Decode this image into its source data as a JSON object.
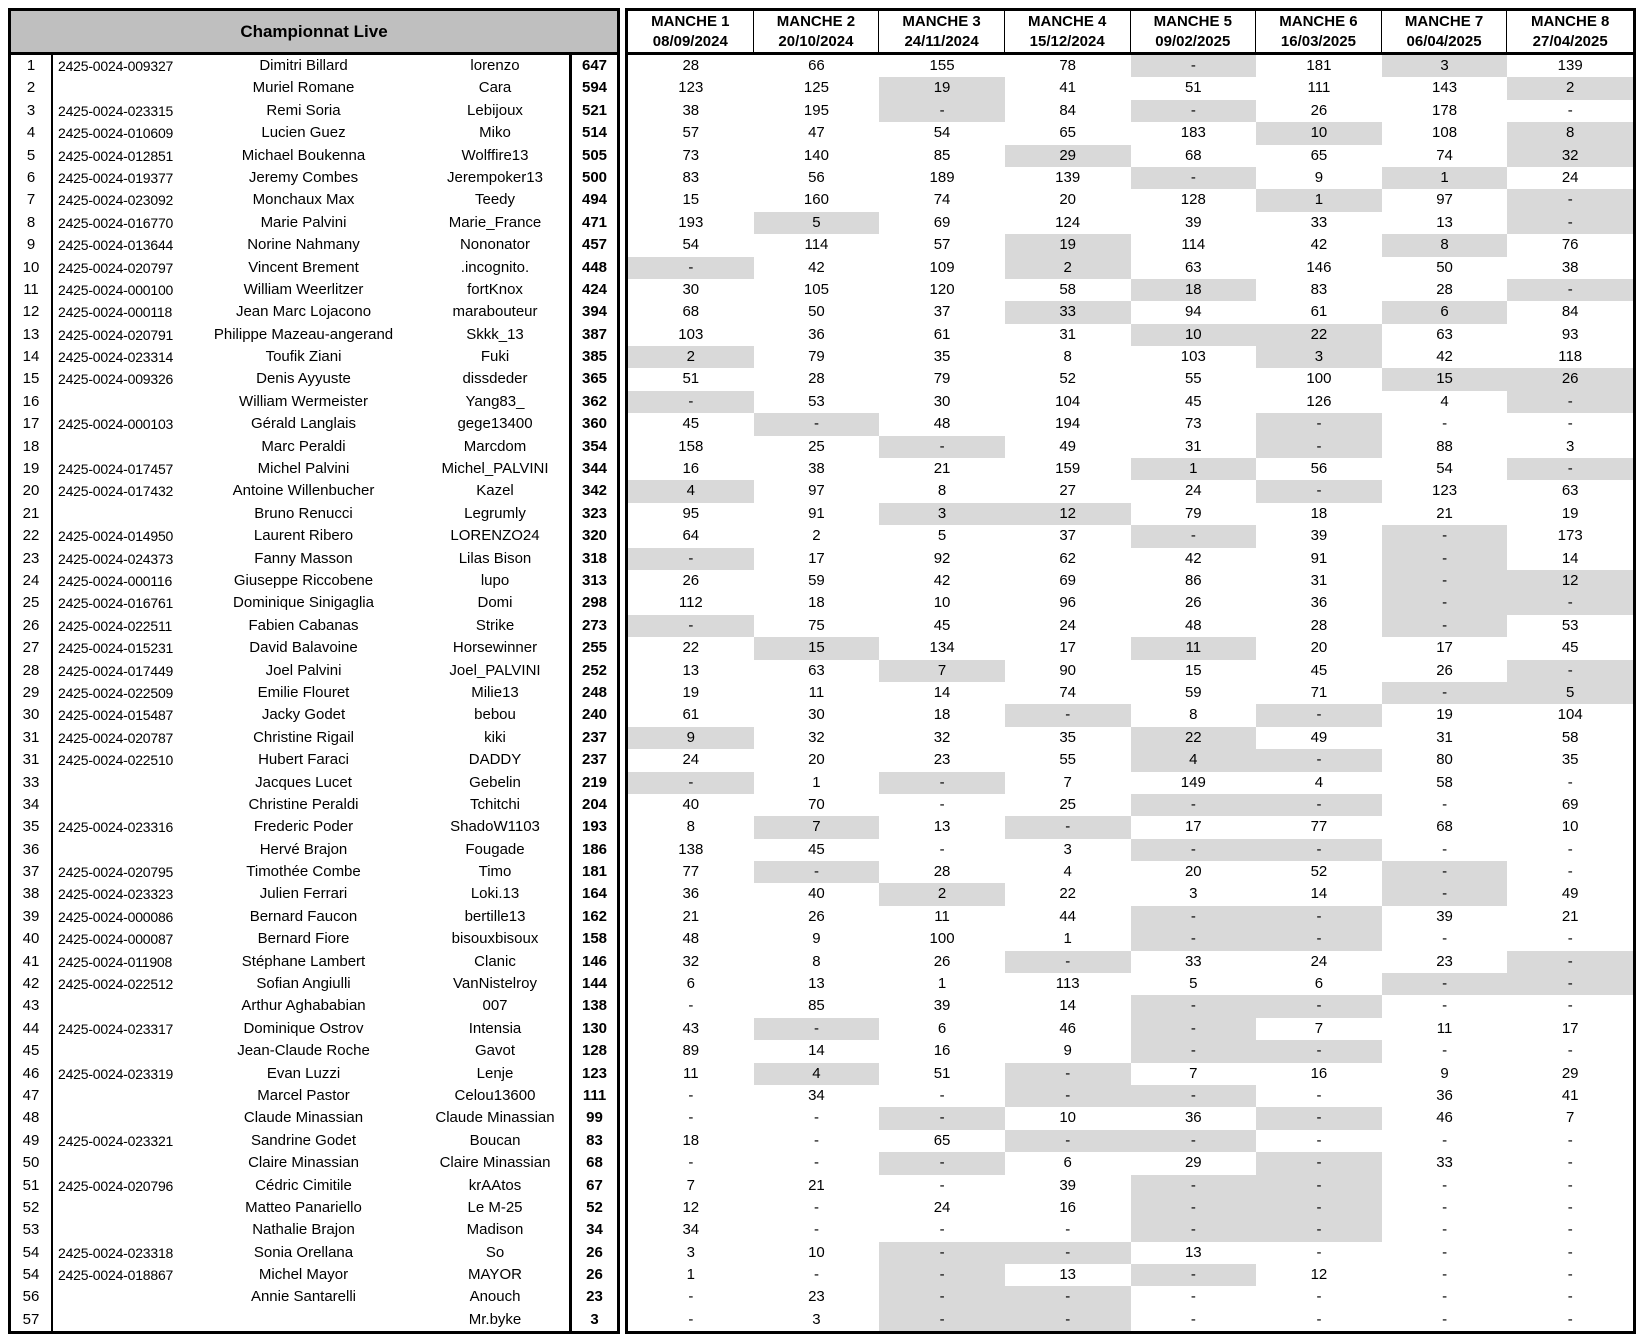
{
  "title": "Championnat Live",
  "colors": {
    "header_bg": "#bfbfbf",
    "highlight": "#d9d9d9",
    "border": "#000000"
  },
  "manches": [
    {
      "label": "MANCHE 1",
      "date": "08/09/2024"
    },
    {
      "label": "MANCHE 2",
      "date": "20/10/2024"
    },
    {
      "label": "MANCHE 3",
      "date": "24/11/2024"
    },
    {
      "label": "MANCHE 4",
      "date": "15/12/2024"
    },
    {
      "label": "MANCHE 5",
      "date": "09/02/2025"
    },
    {
      "label": "MANCHE 6",
      "date": "16/03/2025"
    },
    {
      "label": "MANCHE 7",
      "date": "06/04/2025"
    },
    {
      "label": "MANCHE 8",
      "date": "27/04/2025"
    }
  ],
  "rows": [
    {
      "rank": "1",
      "id": "2425-0024-009327",
      "name": "Dimitri Billard",
      "nick": "lorenzo",
      "total": "647",
      "scores": [
        "28",
        "66",
        "155",
        "78",
        "-",
        "181",
        "3",
        "139"
      ],
      "hl": [
        4,
        6
      ]
    },
    {
      "rank": "2",
      "id": "",
      "name": "Muriel Romane",
      "nick": "Cara",
      "total": "594",
      "scores": [
        "123",
        "125",
        "19",
        "41",
        "51",
        "111",
        "143",
        "2"
      ],
      "hl": [
        2,
        7
      ]
    },
    {
      "rank": "3",
      "id": "2425-0024-023315",
      "name": "Remi Soria",
      "nick": "Lebijoux",
      "total": "521",
      "scores": [
        "38",
        "195",
        "-",
        "84",
        "-",
        "26",
        "178",
        "-"
      ],
      "hl": [
        2,
        4
      ]
    },
    {
      "rank": "4",
      "id": "2425-0024-010609",
      "name": "Lucien Guez",
      "nick": "Miko",
      "total": "514",
      "scores": [
        "57",
        "47",
        "54",
        "65",
        "183",
        "10",
        "108",
        "8"
      ],
      "hl": [
        5,
        7
      ]
    },
    {
      "rank": "5",
      "id": "2425-0024-012851",
      "name": "Michael Boukenna",
      "nick": "Wolffire13",
      "total": "505",
      "scores": [
        "73",
        "140",
        "85",
        "29",
        "68",
        "65",
        "74",
        "32"
      ],
      "hl": [
        3,
        7
      ]
    },
    {
      "rank": "6",
      "id": "2425-0024-019377",
      "name": "Jeremy Combes",
      "nick": "Jerempoker13",
      "total": "500",
      "scores": [
        "83",
        "56",
        "189",
        "139",
        "-",
        "9",
        "1",
        "24"
      ],
      "hl": [
        4,
        6
      ]
    },
    {
      "rank": "7",
      "id": "2425-0024-023092",
      "name": "Monchaux Max",
      "nick": "Teedy",
      "total": "494",
      "scores": [
        "15",
        "160",
        "74",
        "20",
        "128",
        "1",
        "97",
        "-"
      ],
      "hl": [
        5,
        7
      ]
    },
    {
      "rank": "8",
      "id": "2425-0024-016770",
      "name": "Marie Palvini",
      "nick": "Marie_France",
      "total": "471",
      "scores": [
        "193",
        "5",
        "69",
        "124",
        "39",
        "33",
        "13",
        "-"
      ],
      "hl": [
        1,
        7
      ]
    },
    {
      "rank": "9",
      "id": "2425-0024-013644",
      "name": "Norine Nahmany",
      "nick": "Nononator",
      "total": "457",
      "scores": [
        "54",
        "114",
        "57",
        "19",
        "114",
        "42",
        "8",
        "76"
      ],
      "hl": [
        3,
        6
      ]
    },
    {
      "rank": "10",
      "id": "2425-0024-020797",
      "name": "Vincent Brement",
      "nick": ".incognito.",
      "total": "448",
      "scores": [
        "-",
        "42",
        "109",
        "2",
        "63",
        "146",
        "50",
        "38"
      ],
      "hl": [
        0,
        3
      ]
    },
    {
      "rank": "11",
      "id": "2425-0024-000100",
      "name": "William Weerlitzer",
      "nick": "fortKnox",
      "total": "424",
      "scores": [
        "30",
        "105",
        "120",
        "58",
        "18",
        "83",
        "28",
        "-"
      ],
      "hl": [
        4,
        7
      ]
    },
    {
      "rank": "12",
      "id": "2425-0024-000118",
      "name": "Jean Marc Lojacono",
      "nick": "marabouteur",
      "total": "394",
      "scores": [
        "68",
        "50",
        "37",
        "33",
        "94",
        "61",
        "6",
        "84"
      ],
      "hl": [
        3,
        6
      ]
    },
    {
      "rank": "13",
      "id": "2425-0024-020791",
      "name": "Philippe Mazeau-angerand",
      "nick": "Skkk_13",
      "total": "387",
      "scores": [
        "103",
        "36",
        "61",
        "31",
        "10",
        "22",
        "63",
        "93"
      ],
      "hl": [
        4,
        5
      ]
    },
    {
      "rank": "14",
      "id": "2425-0024-023314",
      "name": "Toufik Ziani",
      "nick": "Fuki",
      "total": "385",
      "scores": [
        "2",
        "79",
        "35",
        "8",
        "103",
        "3",
        "42",
        "118"
      ],
      "hl": [
        0,
        5
      ]
    },
    {
      "rank": "15",
      "id": "2425-0024-009326",
      "name": "Denis Ayyuste",
      "nick": "dissdeder",
      "total": "365",
      "scores": [
        "51",
        "28",
        "79",
        "52",
        "55",
        "100",
        "15",
        "26"
      ],
      "hl": [
        6,
        7
      ]
    },
    {
      "rank": "16",
      "id": "",
      "name": "William Wermeister",
      "nick": "Yang83_",
      "total": "362",
      "scores": [
        "-",
        "53",
        "30",
        "104",
        "45",
        "126",
        "4",
        "-"
      ],
      "hl": [
        0,
        7
      ]
    },
    {
      "rank": "17",
      "id": "2425-0024-000103",
      "name": "Gérald Langlais",
      "nick": "gege13400",
      "total": "360",
      "scores": [
        "45",
        "-",
        "48",
        "194",
        "73",
        "-",
        "-",
        "-"
      ],
      "hl": [
        1,
        5
      ]
    },
    {
      "rank": "18",
      "id": "",
      "name": "Marc Peraldi",
      "nick": "Marcdom",
      "total": "354",
      "scores": [
        "158",
        "25",
        "-",
        "49",
        "31",
        "-",
        "88",
        "3"
      ],
      "hl": [
        2,
        5
      ]
    },
    {
      "rank": "19",
      "id": "2425-0024-017457",
      "name": "Michel Palvini",
      "nick": "Michel_PALVINI",
      "total": "344",
      "scores": [
        "16",
        "38",
        "21",
        "159",
        "1",
        "56",
        "54",
        "-"
      ],
      "hl": [
        4,
        7
      ]
    },
    {
      "rank": "20",
      "id": "2425-0024-017432",
      "name": "Antoine Willenbucher",
      "nick": "Kazel",
      "total": "342",
      "scores": [
        "4",
        "97",
        "8",
        "27",
        "24",
        "-",
        "123",
        "63"
      ],
      "hl": [
        0,
        5
      ]
    },
    {
      "rank": "21",
      "id": "",
      "name": "Bruno Renucci",
      "nick": "Legrumly",
      "total": "323",
      "scores": [
        "95",
        "91",
        "3",
        "12",
        "79",
        "18",
        "21",
        "19"
      ],
      "hl": [
        2,
        3
      ]
    },
    {
      "rank": "22",
      "id": "2425-0024-014950",
      "name": "Laurent Ribero",
      "nick": "LORENZO24",
      "total": "320",
      "scores": [
        "64",
        "2",
        "5",
        "37",
        "-",
        "39",
        "-",
        "173"
      ],
      "hl": [
        4,
        6
      ]
    },
    {
      "rank": "23",
      "id": "2425-0024-024373",
      "name": "Fanny Masson",
      "nick": "Lilas Bison",
      "total": "318",
      "scores": [
        "-",
        "17",
        "92",
        "62",
        "42",
        "91",
        "-",
        "14"
      ],
      "hl": [
        0,
        6
      ]
    },
    {
      "rank": "24",
      "id": "2425-0024-000116",
      "name": "Giuseppe Riccobene",
      "nick": "lupo",
      "total": "313",
      "scores": [
        "26",
        "59",
        "42",
        "69",
        "86",
        "31",
        "-",
        "12"
      ],
      "hl": [
        6,
        7
      ]
    },
    {
      "rank": "25",
      "id": "2425-0024-016761",
      "name": "Dominique Sinigaglia",
      "nick": "Domi",
      "total": "298",
      "scores": [
        "112",
        "18",
        "10",
        "96",
        "26",
        "36",
        "-",
        "-"
      ],
      "hl": [
        6,
        7
      ]
    },
    {
      "rank": "26",
      "id": "2425-0024-022511",
      "name": "Fabien Cabanas",
      "nick": "Strike",
      "total": "273",
      "scores": [
        "-",
        "75",
        "45",
        "24",
        "48",
        "28",
        "-",
        "53"
      ],
      "hl": [
        0,
        6
      ]
    },
    {
      "rank": "27",
      "id": "2425-0024-015231",
      "name": "David Balavoine",
      "nick": "Horsewinner",
      "total": "255",
      "scores": [
        "22",
        "15",
        "134",
        "17",
        "11",
        "20",
        "17",
        "45"
      ],
      "hl": [
        1,
        4
      ]
    },
    {
      "rank": "28",
      "id": "2425-0024-017449",
      "name": "Joel Palvini",
      "nick": "Joel_PALVINI",
      "total": "252",
      "scores": [
        "13",
        "63",
        "7",
        "90",
        "15",
        "45",
        "26",
        "-"
      ],
      "hl": [
        2,
        7
      ]
    },
    {
      "rank": "29",
      "id": "2425-0024-022509",
      "name": "Emilie Flouret",
      "nick": "Milie13",
      "total": "248",
      "scores": [
        "19",
        "11",
        "14",
        "74",
        "59",
        "71",
        "-",
        "5"
      ],
      "hl": [
        6,
        7
      ]
    },
    {
      "rank": "30",
      "id": "2425-0024-015487",
      "name": "Jacky Godet",
      "nick": "bebou",
      "total": "240",
      "scores": [
        "61",
        "30",
        "18",
        "-",
        "8",
        "-",
        "19",
        "104"
      ],
      "hl": [
        3,
        5
      ]
    },
    {
      "rank": "31",
      "id": "2425-0024-020787",
      "name": "Christine Rigail",
      "nick": "kiki",
      "total": "237",
      "scores": [
        "9",
        "32",
        "32",
        "35",
        "22",
        "49",
        "31",
        "58"
      ],
      "hl": [
        0,
        4
      ]
    },
    {
      "rank": "31",
      "id": "2425-0024-022510",
      "name": "Hubert Faraci",
      "nick": "DADDY",
      "total": "237",
      "scores": [
        "24",
        "20",
        "23",
        "55",
        "4",
        "-",
        "80",
        "35"
      ],
      "hl": [
        4,
        5
      ]
    },
    {
      "rank": "33",
      "id": "",
      "name": "Jacques Lucet",
      "nick": "Gebelin",
      "total": "219",
      "scores": [
        "-",
        "1",
        "-",
        "7",
        "149",
        "4",
        "58",
        "-"
      ],
      "hl": [
        0,
        2
      ]
    },
    {
      "rank": "34",
      "id": "",
      "name": "Christine Peraldi",
      "nick": "Tchitchi",
      "total": "204",
      "scores": [
        "40",
        "70",
        "-",
        "25",
        "-",
        "-",
        "-",
        "69"
      ],
      "hl": [
        4,
        5
      ]
    },
    {
      "rank": "35",
      "id": "2425-0024-023316",
      "name": "Frederic Poder",
      "nick": "ShadoW1103",
      "total": "193",
      "scores": [
        "8",
        "7",
        "13",
        "-",
        "17",
        "77",
        "68",
        "10"
      ],
      "hl": [
        1,
        3
      ]
    },
    {
      "rank": "36",
      "id": "",
      "name": "Hervé Brajon",
      "nick": "Fougade",
      "total": "186",
      "scores": [
        "138",
        "45",
        "-",
        "3",
        "-",
        "-",
        "-",
        "-"
      ],
      "hl": [
        4,
        5
      ]
    },
    {
      "rank": "37",
      "id": "2425-0024-020795",
      "name": "Timothée Combe",
      "nick": "Timo",
      "total": "181",
      "scores": [
        "77",
        "-",
        "28",
        "4",
        "20",
        "52",
        "-",
        "-"
      ],
      "hl": [
        1,
        6
      ]
    },
    {
      "rank": "38",
      "id": "2425-0024-023323",
      "name": "Julien Ferrari",
      "nick": "Loki.13",
      "total": "164",
      "scores": [
        "36",
        "40",
        "2",
        "22",
        "3",
        "14",
        "-",
        "49"
      ],
      "hl": [
        2,
        6
      ]
    },
    {
      "rank": "39",
      "id": "2425-0024-000086",
      "name": "Bernard Faucon",
      "nick": "bertille13",
      "total": "162",
      "scores": [
        "21",
        "26",
        "11",
        "44",
        "-",
        "-",
        "39",
        "21"
      ],
      "hl": [
        4,
        5
      ]
    },
    {
      "rank": "40",
      "id": "2425-0024-000087",
      "name": "Bernard Fiore",
      "nick": "bisouxbisoux",
      "total": "158",
      "scores": [
        "48",
        "9",
        "100",
        "1",
        "-",
        "-",
        "-",
        "-"
      ],
      "hl": [
        4,
        5
      ]
    },
    {
      "rank": "41",
      "id": "2425-0024-011908",
      "name": "Stéphane Lambert",
      "nick": "Clanic",
      "total": "146",
      "scores": [
        "32",
        "8",
        "26",
        "-",
        "33",
        "24",
        "23",
        "-"
      ],
      "hl": [
        3,
        7
      ]
    },
    {
      "rank": "42",
      "id": "2425-0024-022512",
      "name": "Sofian Angiulli",
      "nick": "VanNistelroy",
      "total": "144",
      "scores": [
        "6",
        "13",
        "1",
        "113",
        "5",
        "6",
        "-",
        "-"
      ],
      "hl": [
        6,
        7
      ]
    },
    {
      "rank": "43",
      "id": "",
      "name": "Arthur Aghababian",
      "nick": "007",
      "total": "138",
      "scores": [
        "-",
        "85",
        "39",
        "14",
        "-",
        "-",
        "-",
        "-"
      ],
      "hl": [
        4,
        5
      ]
    },
    {
      "rank": "44",
      "id": "2425-0024-023317",
      "name": "Dominique Ostrov",
      "nick": "Intensia",
      "total": "130",
      "scores": [
        "43",
        "-",
        "6",
        "46",
        "-",
        "7",
        "11",
        "17"
      ],
      "hl": [
        1,
        4
      ]
    },
    {
      "rank": "45",
      "id": "",
      "name": "Jean-Claude Roche",
      "nick": "Gavot",
      "total": "128",
      "scores": [
        "89",
        "14",
        "16",
        "9",
        "-",
        "-",
        "-",
        "-"
      ],
      "hl": [
        4,
        5
      ]
    },
    {
      "rank": "46",
      "id": "2425-0024-023319",
      "name": "Evan Luzzi",
      "nick": "Lenje",
      "total": "123",
      "scores": [
        "11",
        "4",
        "51",
        "-",
        "7",
        "16",
        "9",
        "29"
      ],
      "hl": [
        1,
        3
      ]
    },
    {
      "rank": "47",
      "id": "",
      "name": "Marcel Pastor",
      "nick": "Celou13600",
      "total": "111",
      "scores": [
        "-",
        "34",
        "-",
        "-",
        "-",
        "-",
        "36",
        "41"
      ],
      "hl": [
        3,
        4
      ]
    },
    {
      "rank": "48",
      "id": "",
      "name": "Claude Minassian",
      "nick": "Claude Minassian",
      "total": "99",
      "scores": [
        "-",
        "-",
        "-",
        "10",
        "36",
        "-",
        "46",
        "7"
      ],
      "hl": [
        2,
        5
      ]
    },
    {
      "rank": "49",
      "id": "2425-0024-023321",
      "name": "Sandrine Godet",
      "nick": "Boucan",
      "total": "83",
      "scores": [
        "18",
        "-",
        "65",
        "-",
        "-",
        "-",
        "-",
        "-"
      ],
      "hl": [
        3,
        4
      ]
    },
    {
      "rank": "50",
      "id": "",
      "name": "Claire Minassian",
      "nick": "Claire Minassian",
      "total": "68",
      "scores": [
        "-",
        "-",
        "-",
        "6",
        "29",
        "-",
        "33",
        "-"
      ],
      "hl": [
        2,
        5
      ]
    },
    {
      "rank": "51",
      "id": "2425-0024-020796",
      "name": "Cédric Cimitile",
      "nick": "krAAtos",
      "total": "67",
      "scores": [
        "7",
        "21",
        "-",
        "39",
        "-",
        "-",
        "-",
        "-"
      ],
      "hl": [
        4,
        5
      ]
    },
    {
      "rank": "52",
      "id": "",
      "name": "Matteo Panariello",
      "nick": "Le M-25",
      "total": "52",
      "scores": [
        "12",
        "-",
        "24",
        "16",
        "-",
        "-",
        "-",
        "-"
      ],
      "hl": [
        4,
        5
      ]
    },
    {
      "rank": "53",
      "id": "",
      "name": "Nathalie Brajon",
      "nick": "Madison",
      "total": "34",
      "scores": [
        "34",
        "-",
        "-",
        "-",
        "-",
        "-",
        "-",
        "-"
      ],
      "hl": [
        4,
        5
      ]
    },
    {
      "rank": "54",
      "id": "2425-0024-023318",
      "name": "Sonia Orellana",
      "nick": "So",
      "total": "26",
      "scores": [
        "3",
        "10",
        "-",
        "-",
        "13",
        "-",
        "-",
        "-"
      ],
      "hl": [
        2,
        3
      ]
    },
    {
      "rank": "54",
      "id": "2425-0024-018867",
      "name": "Michel Mayor",
      "nick": "MAYOR",
      "total": "26",
      "scores": [
        "1",
        "-",
        "-",
        "13",
        "-",
        "12",
        "-",
        "-"
      ],
      "hl": [
        2,
        4
      ]
    },
    {
      "rank": "56",
      "id": "",
      "name": "Annie Santarelli",
      "nick": "Anouch",
      "total": "23",
      "scores": [
        "-",
        "23",
        "-",
        "-",
        "-",
        "-",
        "-",
        "-"
      ],
      "hl": [
        2,
        3
      ]
    },
    {
      "rank": "57",
      "id": "",
      "name": "",
      "nick": "Mr.byke",
      "total": "3",
      "scores": [
        "-",
        "3",
        "-",
        "-",
        "-",
        "-",
        "-",
        "-"
      ],
      "hl": [
        2,
        3
      ]
    }
  ]
}
